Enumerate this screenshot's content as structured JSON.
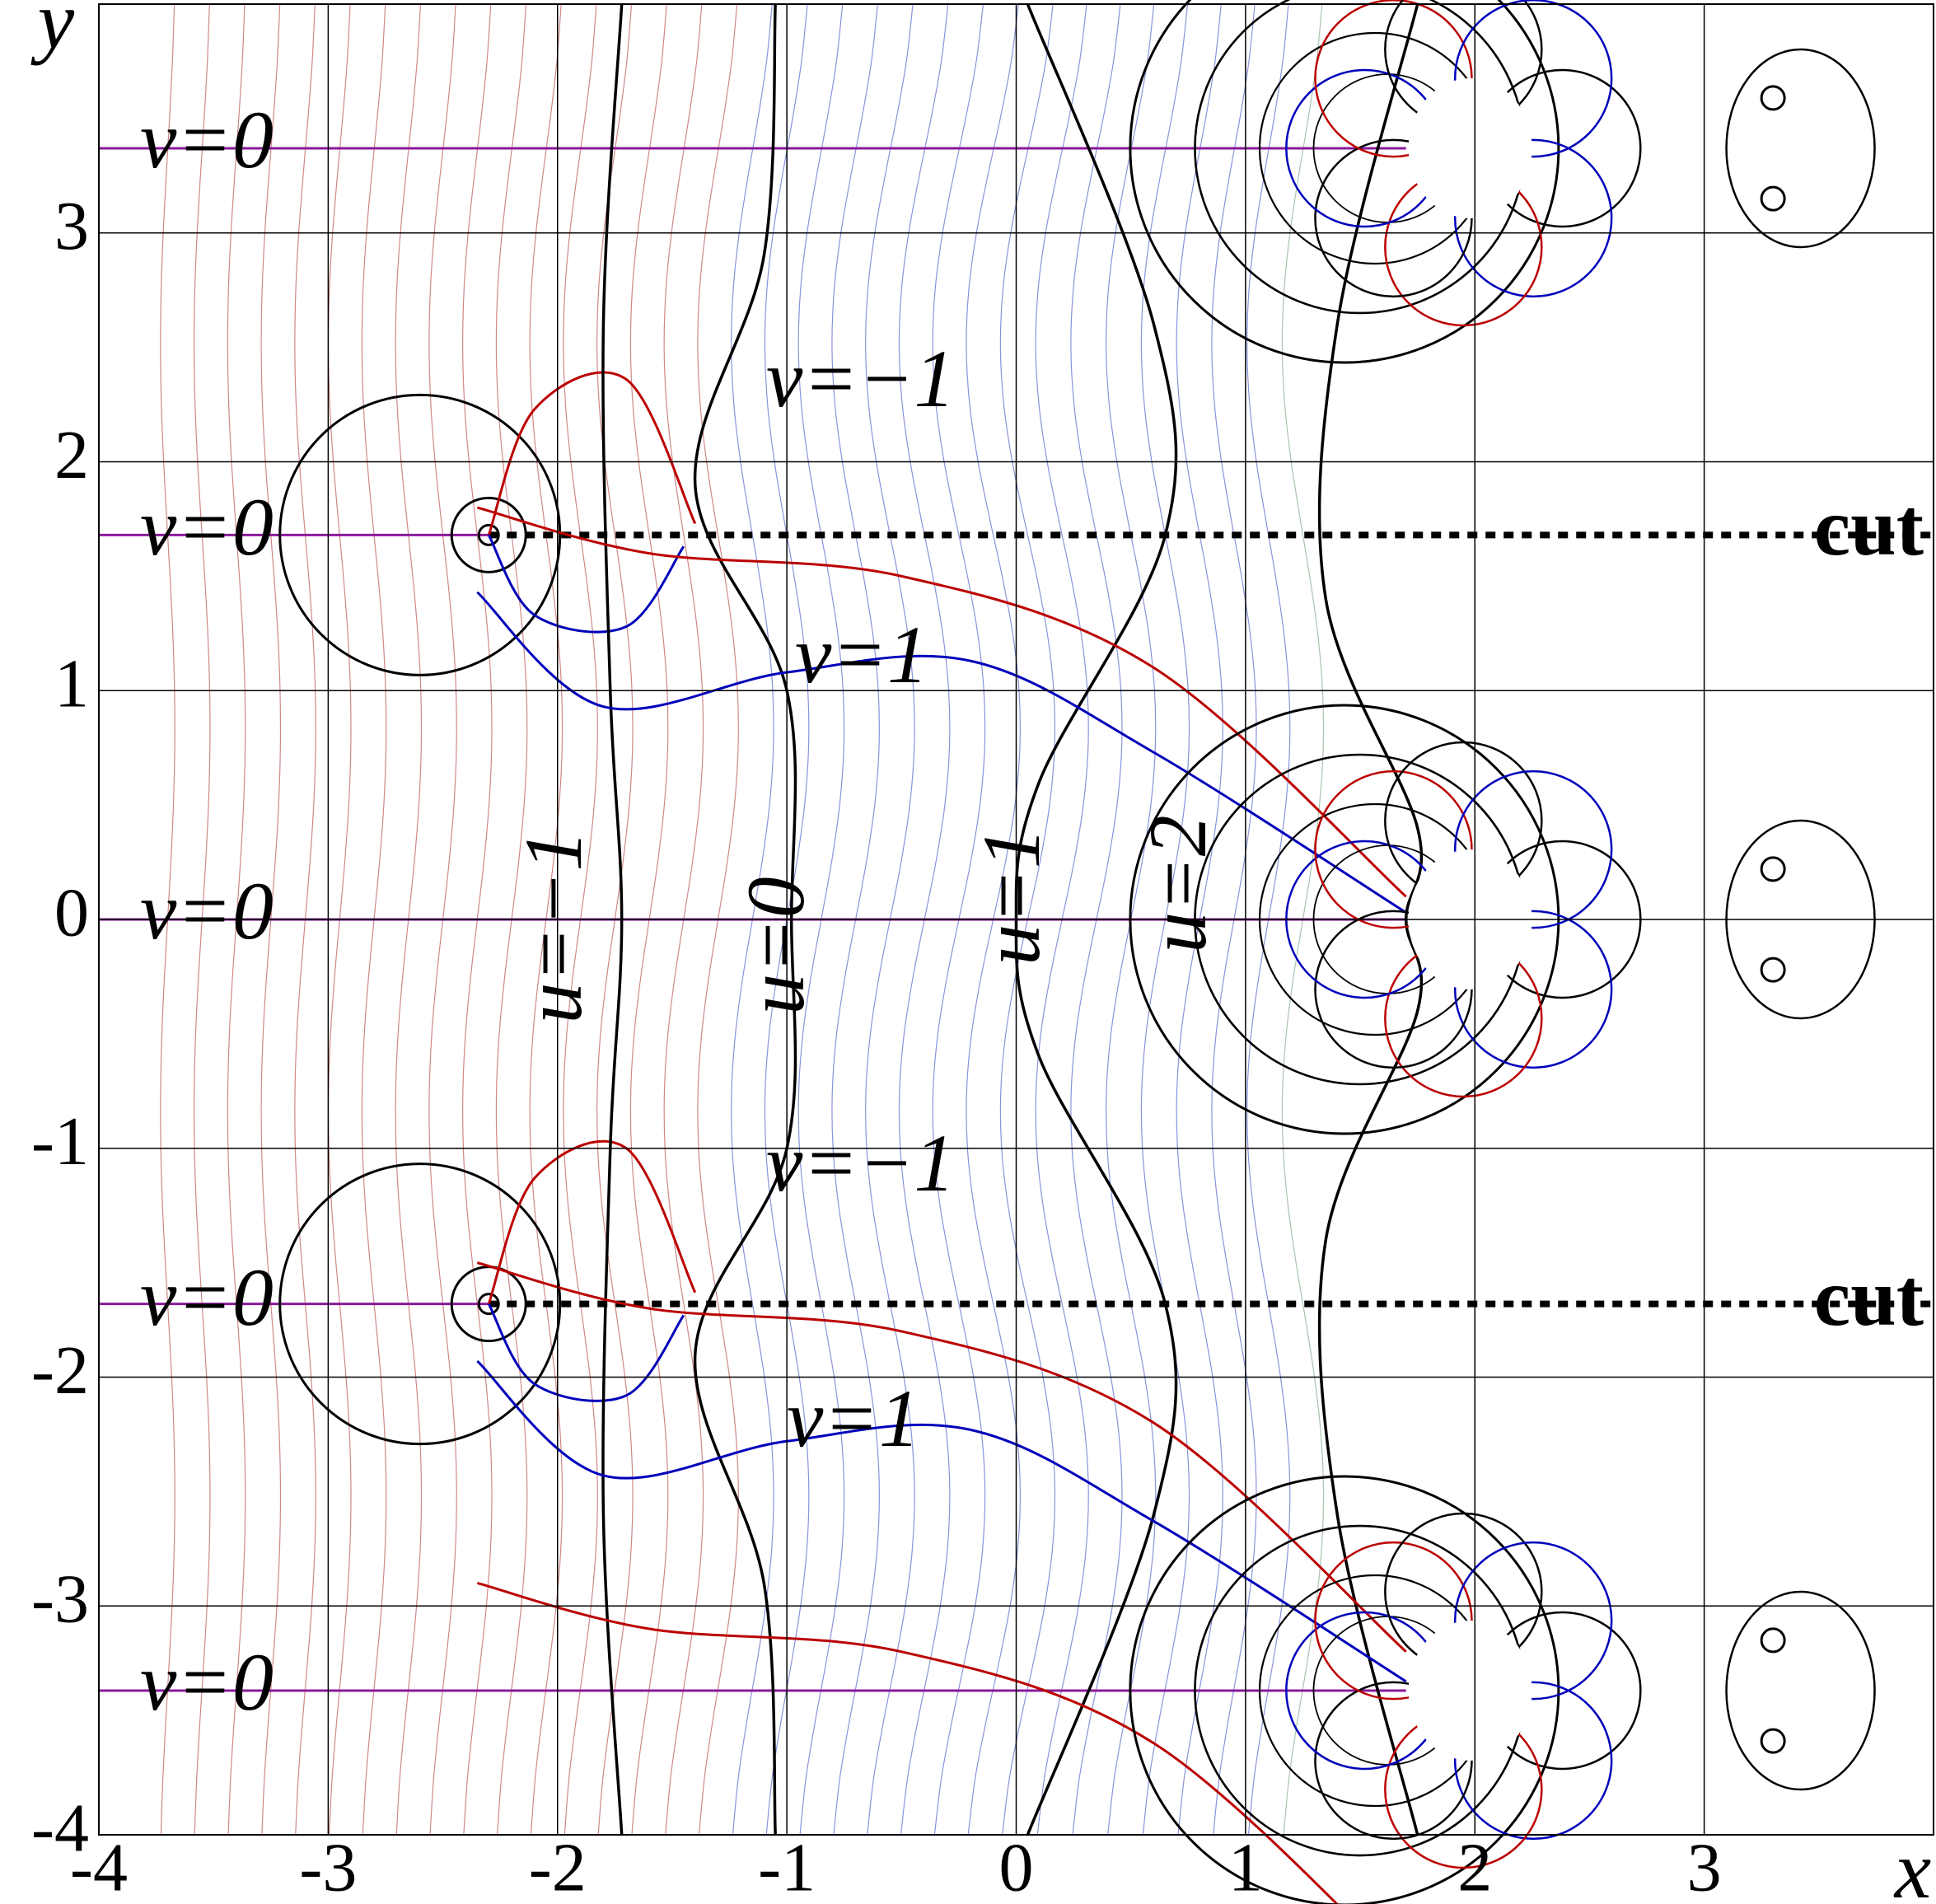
{
  "chart_data": {
    "type": "contour",
    "x_label": "x",
    "y_label": "y",
    "xlim": [
      -4,
      4
    ],
    "ylim": [
      -4,
      4
    ],
    "xticks": [
      -4,
      -3,
      -2,
      -1,
      0,
      1,
      2,
      3
    ],
    "yticks": [
      -4,
      -3,
      -2,
      -1,
      0,
      1,
      2,
      3
    ],
    "grid": true,
    "annotations": [
      "v=0",
      "v=0",
      "v=0",
      "v=0",
      "v=0",
      "v=−1",
      "v=−1",
      "v=1",
      "v=1",
      "u=−1",
      "u=0",
      "u=1",
      "u=2",
      "cut",
      "cut"
    ]
  }
}
